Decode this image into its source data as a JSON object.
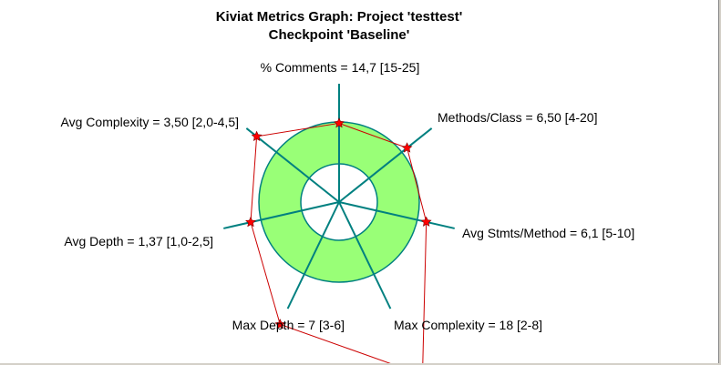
{
  "chart_data": {
    "type": "radar",
    "title": "Kiviat Metrics Graph: Project 'testtest'",
    "subtitle": "Checkpoint 'Baseline'",
    "axes": [
      {
        "label": "% Comments = 14,7 [15-25]",
        "value": 14.7,
        "min": 15,
        "max": 25,
        "norm": 0.97
      },
      {
        "label": "Methods/Class = 6,50 [4-20]",
        "value": 6.5,
        "min": 4,
        "max": 20,
        "norm": 1.16
      },
      {
        "label": "Avg Stmts/Method = 6,1 [5-10]",
        "value": 6.1,
        "min": 5,
        "max": 10,
        "norm": 1.22
      },
      {
        "label": "Max Complexity = 18 [2-8]",
        "value": 18,
        "min": 2,
        "max": 8,
        "norm": 3.67
      },
      {
        "label": "Max Depth = 7 [3-6]",
        "value": 7,
        "min": 3,
        "max": 6,
        "norm": 2.33
      },
      {
        "label": "Avg Depth = 1,37 [1,0-2,5]",
        "value": 1.37,
        "min": 1.0,
        "max": 2.5,
        "norm": 1.25
      },
      {
        "label": "Avg Complexity = 3,50 [2,0-4,5]",
        "value": 3.5,
        "min": 2.0,
        "max": 4.5,
        "norm": 1.6
      }
    ],
    "colors": {
      "band": "#99ff77",
      "spoke": "#008080",
      "ring": "#008080",
      "polygon": "#cc0000",
      "marker": "#ff0000"
    }
  }
}
